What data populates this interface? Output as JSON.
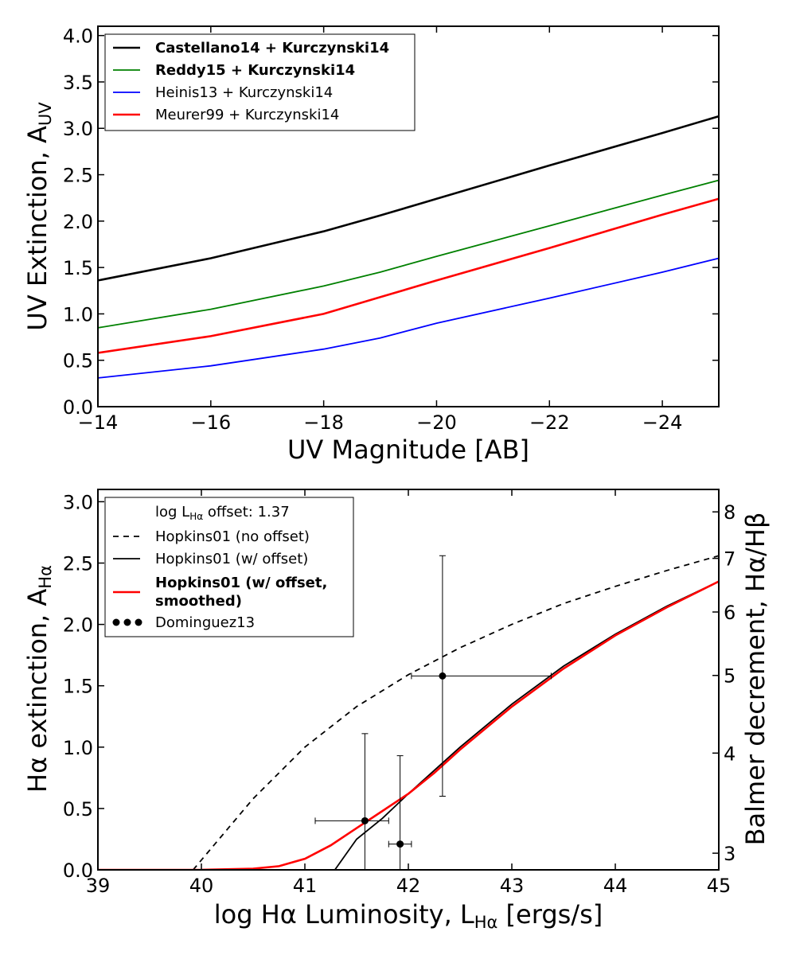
{
  "chart_data": [
    {
      "type": "line",
      "xlabel": "UV Magnitude [AB]",
      "ylabel": "UV Extinction, A",
      "ylabel_sub": "UV",
      "xlim": [
        -14,
        -25
      ],
      "ylim": [
        0.0,
        4.1
      ],
      "x_ticks": [
        "−14",
        "−16",
        "−18",
        "−20",
        "−22",
        "−24"
      ],
      "x_tick_values": [
        -14,
        -16,
        -18,
        -20,
        -22,
        -24
      ],
      "y_ticks": [
        "0.0",
        "0.5",
        "1.0",
        "1.5",
        "2.0",
        "2.5",
        "3.0",
        "3.5",
        "4.0"
      ],
      "y_tick_values": [
        0.0,
        0.5,
        1.0,
        1.5,
        2.0,
        2.5,
        3.0,
        3.5,
        4.0
      ],
      "grid": false,
      "legend_position": "top-left",
      "series": [
        {
          "name": "Castellano14 + Kurczynski14",
          "color": "#000000",
          "bold": true,
          "x": [
            -14,
            -16,
            -18,
            -19,
            -20,
            -22,
            -24,
            -25
          ],
          "y": [
            1.36,
            1.6,
            1.89,
            2.06,
            2.24,
            2.6,
            2.95,
            3.13
          ]
        },
        {
          "name": "Reddy15 + Kurczynski14",
          "color": "#008000",
          "bold": true,
          "x": [
            -14,
            -16,
            -18,
            -19,
            -20,
            -22,
            -24,
            -25
          ],
          "y": [
            0.85,
            1.05,
            1.3,
            1.45,
            1.62,
            1.95,
            2.28,
            2.44
          ]
        },
        {
          "name": "Heinis13 + Kurczynski14",
          "color": "#0000ff",
          "bold": false,
          "x": [
            -14,
            -16,
            -18,
            -19,
            -20,
            -22,
            -24,
            -25
          ],
          "y": [
            0.31,
            0.44,
            0.62,
            0.74,
            0.9,
            1.17,
            1.45,
            1.6
          ]
        },
        {
          "name": "Meurer99 + Kurczynski14",
          "color": "#ff0000",
          "bold": false,
          "x": [
            -14,
            -16,
            -18,
            -19,
            -20,
            -22,
            -24,
            -25
          ],
          "y": [
            0.58,
            0.76,
            1.0,
            1.18,
            1.36,
            1.71,
            2.07,
            2.24
          ]
        }
      ]
    },
    {
      "type": "line",
      "xlabel": "log Hα Luminosity, L",
      "xlabel_sub": "Hα",
      "xlabel_suffix": " [ergs/s]",
      "ylabel": "Hα extinction, A",
      "ylabel_sub": "Hα",
      "y2label": "Balmer decrement, Hα/Hβ",
      "xlim": [
        39,
        45
      ],
      "ylim": [
        0.0,
        3.1
      ],
      "x_ticks": [
        "39",
        "40",
        "41",
        "42",
        "43",
        "44",
        "45"
      ],
      "x_tick_values": [
        39,
        40,
        41,
        42,
        43,
        44,
        45
      ],
      "y_ticks": [
        "0.0",
        "0.5",
        "1.0",
        "1.5",
        "2.0",
        "2.5",
        "3.0"
      ],
      "y_tick_values": [
        0.0,
        0.5,
        1.0,
        1.5,
        2.0,
        2.5,
        3.0
      ],
      "y2_ticks": [
        "3",
        "4",
        "5",
        "6",
        "7",
        "8"
      ],
      "y2_tick_values": [
        3,
        4,
        5,
        6,
        7,
        8
      ],
      "grid": false,
      "legend_position": "top-left",
      "legend_header": "log L",
      "legend_header_sub": "Hα",
      "legend_header_suffix": " offset: 1.37",
      "series": [
        {
          "name": "Hopkins01 (no offset)",
          "color": "#000000",
          "dash": true,
          "bold": false,
          "x": [
            39.92,
            40.0,
            40.5,
            41.0,
            41.5,
            42.0,
            42.5,
            43.0,
            43.5,
            44.0,
            44.5,
            45.0
          ],
          "y": [
            0.0,
            0.08,
            0.58,
            1.0,
            1.33,
            1.59,
            1.81,
            2.0,
            2.17,
            2.31,
            2.44,
            2.56
          ]
        },
        {
          "name": "Hopkins01 (w/ offset)",
          "color": "#000000",
          "dash": false,
          "bold": false,
          "x": [
            41.29,
            41.5,
            41.75,
            42.0,
            42.25,
            42.5,
            43.0,
            43.5,
            44.0,
            44.5,
            45.0
          ],
          "y": [
            0.0,
            0.25,
            0.42,
            0.62,
            0.81,
            1.0,
            1.35,
            1.66,
            1.92,
            2.15,
            2.35
          ]
        },
        {
          "name": "Hopkins01 (w/ offset,",
          "name_line2": " smoothed)",
          "color": "#ff0000",
          "dash": false,
          "bold": true,
          "x": [
            39.0,
            40.0,
            40.5,
            40.75,
            41.0,
            41.25,
            41.5,
            41.75,
            42.0,
            42.25,
            42.5,
            43.0,
            43.5,
            44.0,
            44.5,
            45.0
          ],
          "y": [
            0.0,
            0.0,
            0.01,
            0.03,
            0.09,
            0.2,
            0.34,
            0.48,
            0.62,
            0.79,
            0.98,
            1.33,
            1.64,
            1.91,
            2.14,
            2.35
          ]
        },
        {
          "name": "Dominguez13",
          "type": "errorbar",
          "color": "#000000",
          "points": [
            {
              "x": 41.58,
              "y": 0.4,
              "xerr": [
                0.48,
                0.23
              ],
              "yerr": [
                0.4,
                0.71
              ]
            },
            {
              "x": 41.92,
              "y": 0.21,
              "xerr": [
                0.11,
                0.11
              ],
              "yerr": [
                0.21,
                0.72
              ]
            },
            {
              "x": 42.33,
              "y": 1.58,
              "xerr": [
                0.3,
                1.05
              ],
              "yerr": [
                0.98,
                0.98
              ]
            }
          ]
        }
      ]
    }
  ]
}
